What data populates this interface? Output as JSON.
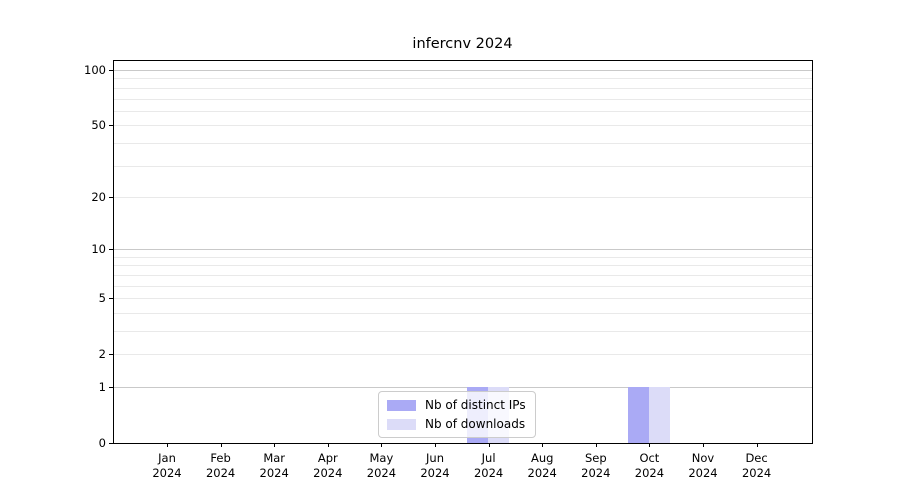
{
  "chart_data": {
    "type": "bar",
    "title": "infercnv 2024",
    "categories": [
      {
        "month": "Jan",
        "year": "2024"
      },
      {
        "month": "Feb",
        "year": "2024"
      },
      {
        "month": "Mar",
        "year": "2024"
      },
      {
        "month": "Apr",
        "year": "2024"
      },
      {
        "month": "May",
        "year": "2024"
      },
      {
        "month": "Jun",
        "year": "2024"
      },
      {
        "month": "Jul",
        "year": "2024"
      },
      {
        "month": "Aug",
        "year": "2024"
      },
      {
        "month": "Sep",
        "year": "2024"
      },
      {
        "month": "Oct",
        "year": "2024"
      },
      {
        "month": "Nov",
        "year": "2024"
      },
      {
        "month": "Dec",
        "year": "2024"
      }
    ],
    "series": [
      {
        "name": "Nb of distinct IPs",
        "color": "#aaaaf5",
        "values": [
          0,
          0,
          0,
          0,
          0,
          0,
          1,
          0,
          0,
          1,
          0,
          0
        ]
      },
      {
        "name": "Nb of downloads",
        "color": "#dcdcf8",
        "values": [
          0,
          0,
          0,
          0,
          0,
          0,
          1,
          0,
          0,
          1,
          0,
          0
        ]
      }
    ],
    "y_axis": {
      "scale": "log1p",
      "tick_values": [
        100,
        50,
        20,
        10,
        5,
        2,
        1,
        0
      ],
      "major_gridline_values": [
        1,
        10,
        100
      ],
      "minor_gridline_values": [
        2,
        3,
        4,
        5,
        6,
        7,
        8,
        9,
        20,
        30,
        40,
        50,
        60,
        70,
        80,
        90
      ],
      "range": [
        0,
        113
      ]
    },
    "layout_hints": {
      "grid": "horizontal-only",
      "legend_position": "inside-bottom-center",
      "vertical_gridlines": false
    }
  },
  "colors": {
    "background": "#ffffff",
    "axis": "#000000",
    "text": "#000000",
    "major_gridline": "#c9c9c9",
    "minor_gridline": "#e9e9e9",
    "legend_border": "#cccccc",
    "bar_distinct_ips": "#aaaaf5",
    "bar_downloads": "#dcdcf8"
  }
}
